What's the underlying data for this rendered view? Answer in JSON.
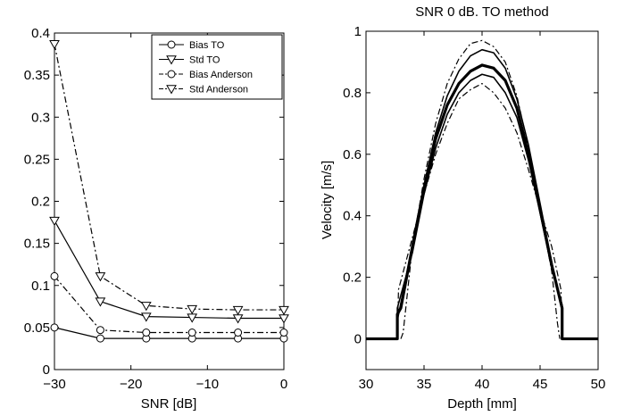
{
  "chart_data": [
    {
      "type": "line",
      "title": "",
      "xlabel": "SNR [dB]",
      "ylabel": "",
      "xlim": [
        -30,
        0
      ],
      "ylim": [
        0,
        0.4
      ],
      "x_ticks": [
        -30,
        -20,
        -10,
        0
      ],
      "y_ticks": [
        0,
        0.05,
        0.1,
        0.15,
        0.2,
        0.25,
        0.3,
        0.35,
        0.4
      ],
      "x_tick_labels": [
        "−30",
        "−20",
        "−10",
        "0"
      ],
      "y_tick_labels": [
        "0",
        "0.05",
        "0.1",
        "0.15",
        "0.2",
        "0.25",
        "0.3",
        "0.35",
        "0.4"
      ],
      "grid": false,
      "legend_position": "top-right",
      "x": [
        -30,
        -24,
        -18,
        -12,
        -6,
        0
      ],
      "series": [
        {
          "name": "Bias TO",
          "dash": "solid",
          "marker": "circle",
          "values": [
            0.05,
            0.037,
            0.037,
            0.037,
            0.037,
            0.037
          ]
        },
        {
          "name": "Std TO",
          "dash": "solid",
          "marker": "triangle",
          "values": [
            0.177,
            0.081,
            0.063,
            0.062,
            0.061,
            0.061
          ]
        },
        {
          "name": "Bias Anderson",
          "dash": "dashdot",
          "marker": "circle",
          "values": [
            0.111,
            0.047,
            0.044,
            0.044,
            0.044,
            0.044
          ]
        },
        {
          "name": "Std Anderson",
          "dash": "dashdot",
          "marker": "triangle",
          "values": [
            0.387,
            0.111,
            0.076,
            0.072,
            0.071,
            0.071
          ]
        }
      ]
    },
    {
      "type": "line",
      "title": "SNR 0 dB. TO method",
      "xlabel": "Depth [mm]",
      "ylabel": "Velocity [m/s]",
      "xlim": [
        30,
        50
      ],
      "ylim": [
        -0.1,
        1
      ],
      "x_ticks": [
        30,
        35,
        40,
        45,
        50
      ],
      "y_ticks": [
        0,
        0.2,
        0.4,
        0.6,
        0.8,
        1
      ],
      "x_tick_labels": [
        "30",
        "35",
        "40",
        "45",
        "50"
      ],
      "y_tick_labels": [
        "0",
        "0.2",
        "0.4",
        "0.6",
        "0.8",
        "1"
      ],
      "grid": false,
      "series": [
        {
          "dash": "solid",
          "width": 3.2,
          "points": [
            [
              30,
              0
            ],
            [
              32.7,
              0
            ],
            [
              32.7,
              0.08
            ],
            [
              33,
              0.1
            ],
            [
              34,
              0.3
            ],
            [
              35,
              0.49
            ],
            [
              36,
              0.65
            ],
            [
              37,
              0.76
            ],
            [
              38,
              0.83
            ],
            [
              39,
              0.87
            ],
            [
              40,
              0.89
            ],
            [
              41,
              0.88
            ],
            [
              42,
              0.84
            ],
            [
              43,
              0.75
            ],
            [
              44,
              0.6
            ],
            [
              45,
              0.42
            ],
            [
              46,
              0.24
            ],
            [
              46.9,
              0.1
            ],
            [
              46.9,
              0
            ],
            [
              50,
              0
            ]
          ]
        },
        {
          "dash": "solid",
          "width": 1.6,
          "points": [
            [
              32.7,
              0
            ],
            [
              32.7,
              0.06
            ],
            [
              34,
              0.3
            ],
            [
              35,
              0.5
            ],
            [
              36,
              0.67
            ],
            [
              37,
              0.79
            ],
            [
              38,
              0.87
            ],
            [
              39,
              0.92
            ],
            [
              40,
              0.94
            ],
            [
              41,
              0.93
            ],
            [
              42,
              0.88
            ],
            [
              43,
              0.78
            ],
            [
              44,
              0.63
            ],
            [
              45,
              0.44
            ],
            [
              46,
              0.25
            ],
            [
              46.9,
              0.09
            ],
            [
              46.9,
              0
            ]
          ]
        },
        {
          "dash": "solid",
          "width": 1.6,
          "points": [
            [
              32.7,
              0
            ],
            [
              32.7,
              0.1
            ],
            [
              34,
              0.28
            ],
            [
              35,
              0.47
            ],
            [
              36,
              0.62
            ],
            [
              37,
              0.73
            ],
            [
              38,
              0.8
            ],
            [
              39,
              0.84
            ],
            [
              40,
              0.86
            ],
            [
              41,
              0.85
            ],
            [
              42,
              0.8
            ],
            [
              43,
              0.72
            ],
            [
              44,
              0.58
            ],
            [
              45,
              0.41
            ],
            [
              46,
              0.23
            ],
            [
              46.9,
              0.11
            ],
            [
              46.9,
              0
            ]
          ]
        },
        {
          "dash": "dashdot",
          "width": 1.2,
          "points": [
            [
              33,
              0
            ],
            [
              33.2,
              0.02
            ],
            [
              34,
              0.3
            ],
            [
              35,
              0.52
            ],
            [
              36,
              0.7
            ],
            [
              37,
              0.83
            ],
            [
              38,
              0.91
            ],
            [
              39,
              0.96
            ],
            [
              40,
              0.97
            ],
            [
              41,
              0.95
            ],
            [
              42,
              0.9
            ],
            [
              43,
              0.79
            ],
            [
              44,
              0.62
            ],
            [
              45,
              0.42
            ],
            [
              46,
              0.22
            ],
            [
              46.5,
              0.05
            ],
            [
              46.7,
              0
            ]
          ]
        },
        {
          "dash": "dashdot",
          "width": 1.2,
          "points": [
            [
              32.7,
              0
            ],
            [
              32.8,
              0.16
            ],
            [
              34,
              0.33
            ],
            [
              35,
              0.47
            ],
            [
              36,
              0.6
            ],
            [
              37,
              0.7
            ],
            [
              38,
              0.78
            ],
            [
              39,
              0.81
            ],
            [
              40,
              0.83
            ],
            [
              41,
              0.8
            ],
            [
              42,
              0.75
            ],
            [
              43,
              0.67
            ],
            [
              44,
              0.55
            ],
            [
              45,
              0.42
            ],
            [
              46,
              0.3
            ],
            [
              46.8,
              0.16
            ],
            [
              46.9,
              0
            ]
          ]
        }
      ]
    }
  ],
  "colors": {
    "line": "#000000",
    "background": "#ffffff"
  }
}
